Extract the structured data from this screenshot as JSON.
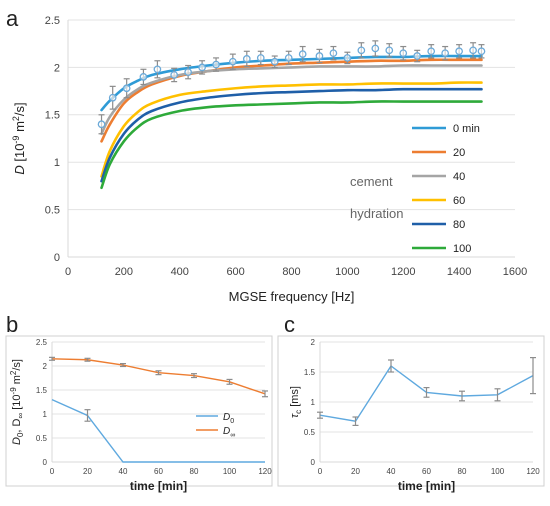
{
  "chart_data": [
    {
      "panel_label": "a",
      "type": "line",
      "xlabel": "MGSE frequency [Hz]",
      "ylabel_main": "D",
      "ylabel_unit_a": "[10",
      "ylabel_unit_exp": "-9",
      "ylabel_unit_b": " m",
      "ylabel_unit_sq": "2",
      "ylabel_unit_c": "/s]",
      "xlim": [
        0,
        1600
      ],
      "ylim": [
        0,
        2.5
      ],
      "x_ticks": [
        0,
        200,
        400,
        600,
        800,
        1000,
        1200,
        1400,
        1600
      ],
      "y_ticks": [
        0,
        0.5,
        1,
        1.5,
        2,
        2.5
      ],
      "x_tick_labels": [
        "0",
        "200",
        "400",
        "600",
        "800",
        "1000",
        "1200",
        "1400",
        "1600"
      ],
      "y_tick_labels": [
        "0",
        "0.5",
        "1",
        "1.5",
        "2",
        "2.5"
      ],
      "grid": true,
      "legend_position": "right",
      "annotation_1": "cement",
      "annotation_2": "hydration",
      "x": [
        120,
        150,
        200,
        250,
        300,
        400,
        500,
        600,
        700,
        800,
        900,
        1000,
        1100,
        1200,
        1300,
        1400,
        1480
      ],
      "series": [
        {
          "name": "0 min",
          "color": "#2f9bd6",
          "values": [
            1.55,
            1.65,
            1.78,
            1.86,
            1.92,
            1.98,
            2.02,
            2.05,
            2.07,
            2.08,
            2.09,
            2.1,
            2.11,
            2.11,
            2.12,
            2.12,
            2.12
          ]
        },
        {
          "name": "20",
          "color": "#ed7d31",
          "values": [
            1.22,
            1.4,
            1.62,
            1.74,
            1.82,
            1.91,
            1.96,
            2.0,
            2.02,
            2.04,
            2.05,
            2.06,
            2.07,
            2.07,
            2.08,
            2.08,
            2.08
          ]
        },
        {
          "name": "40",
          "color": "#a5a5a5",
          "values": [
            1.3,
            1.48,
            1.66,
            1.77,
            1.84,
            1.92,
            1.96,
            1.98,
            1.99,
            2.0,
            2.01,
            2.01,
            2.01,
            2.02,
            2.02,
            2.02,
            2.02
          ]
        },
        {
          "name": "60",
          "color": "#ffc000",
          "values": [
            0.85,
            1.12,
            1.38,
            1.53,
            1.62,
            1.71,
            1.75,
            1.78,
            1.8,
            1.81,
            1.82,
            1.82,
            1.83,
            1.83,
            1.83,
            1.84,
            1.84
          ]
        },
        {
          "name": "80",
          "color": "#1f5fa8",
          "values": [
            0.8,
            1.05,
            1.3,
            1.45,
            1.54,
            1.63,
            1.68,
            1.71,
            1.73,
            1.74,
            1.75,
            1.76,
            1.76,
            1.77,
            1.77,
            1.77,
            1.77
          ]
        },
        {
          "name": "100",
          "color": "#2eaa3a",
          "values": [
            0.73,
            0.98,
            1.22,
            1.37,
            1.46,
            1.54,
            1.58,
            1.6,
            1.61,
            1.62,
            1.63,
            1.63,
            1.64,
            1.64,
            1.64,
            1.64,
            1.64
          ]
        }
      ],
      "measured_points": {
        "x": [
          120,
          160,
          210,
          270,
          320,
          380,
          430,
          480,
          530,
          590,
          640,
          690,
          740,
          790,
          840,
          900,
          950,
          1000,
          1050,
          1100,
          1150,
          1200,
          1250,
          1300,
          1350,
          1400,
          1450,
          1480
        ],
        "values": [
          1.4,
          1.68,
          1.78,
          1.9,
          1.98,
          1.92,
          1.95,
          2.0,
          2.03,
          2.06,
          2.09,
          2.1,
          2.06,
          2.1,
          2.14,
          2.12,
          2.15,
          2.1,
          2.18,
          2.2,
          2.18,
          2.15,
          2.12,
          2.17,
          2.15,
          2.17,
          2.18,
          2.17
        ],
        "errors": [
          0.1,
          0.12,
          0.1,
          0.08,
          0.09,
          0.07,
          0.07,
          0.07,
          0.07,
          0.08,
          0.08,
          0.07,
          0.06,
          0.07,
          0.08,
          0.07,
          0.07,
          0.06,
          0.08,
          0.08,
          0.07,
          0.07,
          0.06,
          0.07,
          0.07,
          0.07,
          0.08,
          0.07
        ],
        "color": "#6ba9d8"
      }
    },
    {
      "panel_label": "b",
      "type": "line",
      "xlabel": "time [min]",
      "ylabel_main": "D",
      "ylabel_sub_0": "0",
      "ylabel_mid": ", D",
      "ylabel_sub_inf": "∞",
      "ylabel_unit_a": " [10",
      "ylabel_unit_exp": "-9",
      "ylabel_unit_b": " m",
      "ylabel_unit_sq": "2",
      "ylabel_unit_c": "/s]",
      "xlim": [
        0,
        120
      ],
      "ylim": [
        0,
        2.5
      ],
      "x_ticks": [
        0,
        20,
        40,
        60,
        80,
        100,
        120
      ],
      "y_ticks": [
        0,
        0.5,
        1,
        1.5,
        2,
        2.5
      ],
      "x_tick_labels": [
        "0",
        "20",
        "40",
        "60",
        "80",
        "100",
        "120"
      ],
      "y_tick_labels": [
        "0",
        "0.5",
        "1",
        "1.5",
        "2",
        "2.5"
      ],
      "grid": true,
      "legend_position": "right",
      "x": [
        0,
        20,
        40,
        60,
        80,
        100,
        120
      ],
      "series": [
        {
          "name_main": "D",
          "name_sub": "0",
          "color": "#5fa9df",
          "values": [
            1.3,
            0.97,
            0,
            0,
            0,
            0,
            0
          ],
          "errors": [
            0,
            0.12,
            0,
            0,
            0,
            0,
            0
          ]
        },
        {
          "name_main": "D",
          "name_sub": "∞",
          "color": "#ed7d31",
          "values": [
            2.15,
            2.13,
            2.02,
            1.86,
            1.8,
            1.67,
            1.42
          ],
          "errors": [
            0.03,
            0.03,
            0.03,
            0.04,
            0.04,
            0.05,
            0.06
          ]
        }
      ]
    },
    {
      "panel_label": "c",
      "type": "line",
      "xlabel": "time [min]",
      "ylabel_main": "τ",
      "ylabel_sub": "c",
      "ylabel_unit": " [ms]",
      "xlim": [
        0,
        120
      ],
      "ylim": [
        0,
        2
      ],
      "x_ticks": [
        0,
        20,
        40,
        60,
        80,
        100,
        120
      ],
      "y_ticks": [
        0,
        0.5,
        1,
        1.5,
        2
      ],
      "x_tick_labels": [
        "0",
        "20",
        "40",
        "60",
        "80",
        "100",
        "120"
      ],
      "y_tick_labels": [
        "0",
        "0.5",
        "1",
        "1.5",
        "2"
      ],
      "grid": true,
      "x": [
        0,
        20,
        40,
        60,
        80,
        100,
        120
      ],
      "series": [
        {
          "color": "#5fa9df",
          "values": [
            0.78,
            0.68,
            1.6,
            1.16,
            1.1,
            1.12,
            1.44
          ],
          "errors": [
            0.05,
            0.07,
            0.1,
            0.08,
            0.08,
            0.1,
            0.3
          ]
        }
      ]
    }
  ]
}
